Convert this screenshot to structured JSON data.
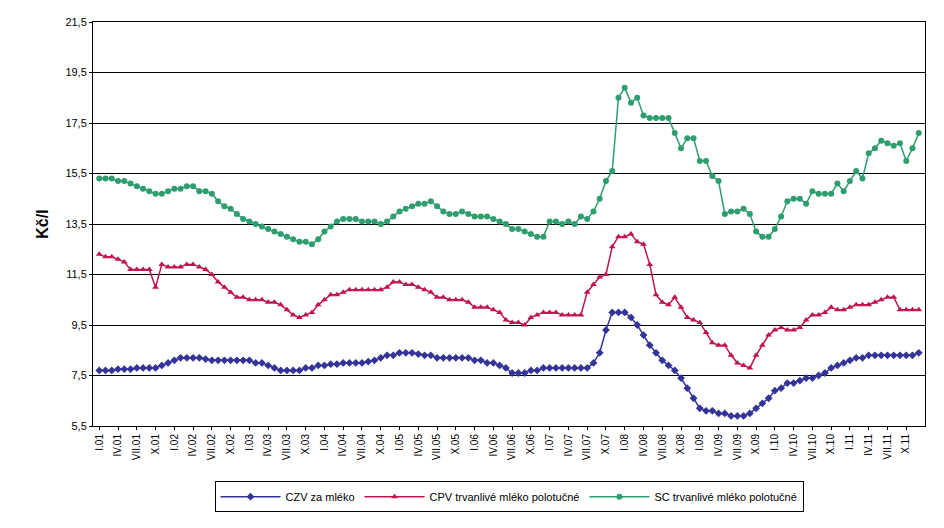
{
  "chart_data": {
    "type": "line",
    "y_label": "Kč/l",
    "grid": true,
    "legend": "bottom",
    "categories": [
      "I.01",
      null,
      null,
      "IV.01",
      null,
      null,
      "VII.01",
      null,
      null,
      "X.01",
      null,
      null,
      "I.02",
      null,
      null,
      "IV.02",
      null,
      null,
      "VII.02",
      null,
      null,
      "X.02",
      null,
      null,
      "I.03",
      null,
      null,
      "IV.03",
      null,
      null,
      "VII.03",
      null,
      null,
      "X.03",
      null,
      null,
      "I.04",
      null,
      null,
      "IV.04",
      null,
      null,
      "VII.04",
      null,
      null,
      "X.04",
      null,
      null,
      "I.05",
      null,
      null,
      "IV.05",
      null,
      null,
      "VII.05",
      null,
      null,
      "X.05",
      null,
      null,
      "I.06",
      null,
      null,
      "IV.06",
      null,
      null,
      "VII.06",
      null,
      null,
      "X.06",
      null,
      null,
      "I.07",
      null,
      null,
      "IV.07",
      null,
      null,
      "VII.07",
      null,
      null,
      "X.07",
      null,
      null,
      "I.08",
      null,
      null,
      "IV.08",
      null,
      null,
      "VII.08",
      null,
      null,
      "X.08",
      null,
      null,
      "I.09",
      null,
      null,
      "IV.09",
      null,
      null,
      "VII.09",
      null,
      null,
      "X.09",
      null,
      null,
      "I.10",
      null,
      null,
      "IV.10",
      null,
      null,
      "VII.10",
      null,
      null,
      "X.10",
      null,
      null,
      "I.11",
      null,
      null,
      "IV.11",
      null,
      null,
      "VII.11",
      null,
      null,
      "X.11",
      null,
      null
    ],
    "ylim": [
      5.5,
      21.5
    ],
    "yticks": [
      {
        "value": 5.5,
        "label": "5,5"
      },
      {
        "value": 7.5,
        "label": "7,5"
      },
      {
        "value": 9.5,
        "label": "9,5"
      },
      {
        "value": 11.5,
        "label": "11,5"
      },
      {
        "value": 13.5,
        "label": "13,5"
      },
      {
        "value": 15.5,
        "label": "15,5"
      },
      {
        "value": 17.5,
        "label": "17,5"
      },
      {
        "value": 19.5,
        "label": "19,5"
      },
      {
        "value": 21.5,
        "label": "21,5"
      }
    ],
    "series": [
      {
        "name": "CZV za mléko",
        "color": "#333399",
        "marker": "diamond",
        "line_style": "solid",
        "values": [
          7.7,
          7.7,
          7.7,
          7.75,
          7.75,
          7.75,
          7.8,
          7.8,
          7.8,
          7.8,
          7.9,
          8.0,
          8.1,
          8.2,
          8.2,
          8.2,
          8.2,
          8.15,
          8.1,
          8.1,
          8.1,
          8.1,
          8.1,
          8.1,
          8.1,
          8.0,
          8.0,
          7.9,
          7.8,
          7.7,
          7.7,
          7.7,
          7.7,
          7.8,
          7.8,
          7.9,
          7.9,
          7.95,
          7.95,
          8.0,
          8.0,
          8.0,
          8.0,
          8.05,
          8.1,
          8.2,
          8.3,
          8.3,
          8.4,
          8.4,
          8.4,
          8.35,
          8.3,
          8.3,
          8.2,
          8.2,
          8.2,
          8.2,
          8.2,
          8.2,
          8.1,
          8.1,
          8.0,
          8.0,
          7.9,
          7.8,
          7.6,
          7.6,
          7.6,
          7.7,
          7.7,
          7.8,
          7.8,
          7.8,
          7.8,
          7.8,
          7.8,
          7.8,
          7.8,
          8.0,
          8.4,
          9.3,
          10.0,
          10.0,
          10.0,
          9.8,
          9.5,
          9.1,
          8.7,
          8.4,
          8.1,
          7.9,
          7.7,
          7.4,
          7.0,
          6.6,
          6.2,
          6.1,
          6.1,
          6.0,
          6.0,
          5.9,
          5.9,
          5.9,
          6.0,
          6.2,
          6.4,
          6.6,
          6.9,
          7.0,
          7.2,
          7.2,
          7.3,
          7.4,
          7.4,
          7.5,
          7.6,
          7.8,
          7.9,
          8.0,
          8.1,
          8.2,
          8.2,
          8.3,
          8.3,
          8.3,
          8.3,
          8.3,
          8.3,
          8.3,
          8.3,
          8.4
        ]
      },
      {
        "name": "CPV trvanlivé mléko polotučné",
        "color": "#C0144A",
        "marker": "triangle-up",
        "line_style": "solid",
        "values": [
          12.3,
          12.2,
          12.2,
          12.1,
          12.0,
          11.7,
          11.7,
          11.7,
          11.7,
          11.0,
          11.9,
          11.8,
          11.8,
          11.8,
          11.9,
          11.9,
          11.8,
          11.7,
          11.5,
          11.2,
          11.0,
          10.8,
          10.6,
          10.6,
          10.5,
          10.5,
          10.5,
          10.4,
          10.4,
          10.3,
          10.1,
          9.9,
          9.8,
          9.9,
          10.0,
          10.3,
          10.5,
          10.7,
          10.7,
          10.8,
          10.9,
          10.9,
          10.9,
          10.9,
          10.9,
          10.9,
          11.0,
          11.2,
          11.2,
          11.1,
          11.1,
          11.0,
          10.9,
          10.8,
          10.6,
          10.6,
          10.5,
          10.5,
          10.5,
          10.4,
          10.2,
          10.2,
          10.2,
          10.1,
          10.0,
          9.7,
          9.6,
          9.6,
          9.5,
          9.8,
          9.9,
          10.0,
          10.0,
          10.0,
          9.9,
          9.9,
          9.9,
          9.9,
          10.8,
          11.1,
          11.4,
          11.5,
          12.6,
          13.0,
          13.0,
          13.1,
          12.8,
          12.7,
          11.9,
          10.7,
          10.4,
          10.3,
          10.6,
          10.2,
          9.8,
          9.7,
          9.6,
          9.2,
          8.8,
          8.7,
          8.7,
          8.3,
          8.0,
          7.9,
          7.8,
          8.3,
          8.7,
          9.1,
          9.3,
          9.4,
          9.3,
          9.3,
          9.4,
          9.7,
          9.9,
          9.9,
          10.0,
          10.2,
          10.1,
          10.1,
          10.2,
          10.3,
          10.3,
          10.3,
          10.4,
          10.5,
          10.6,
          10.6,
          10.1,
          10.1,
          10.1,
          10.1
        ]
      },
      {
        "name": "SC trvanlivé mléko polotučné",
        "color": "#2E9E6E",
        "marker": "circle",
        "line_style": "solid",
        "values": [
          15.3,
          15.3,
          15.3,
          15.2,
          15.2,
          15.1,
          15.0,
          14.9,
          14.8,
          14.7,
          14.7,
          14.8,
          14.9,
          14.9,
          15.0,
          15.0,
          14.8,
          14.8,
          14.7,
          14.4,
          14.2,
          14.1,
          13.9,
          13.7,
          13.6,
          13.5,
          13.4,
          13.3,
          13.2,
          13.1,
          13.0,
          12.9,
          12.8,
          12.8,
          12.7,
          12.9,
          13.2,
          13.4,
          13.6,
          13.7,
          13.7,
          13.7,
          13.6,
          13.6,
          13.6,
          13.5,
          13.6,
          13.8,
          14.0,
          14.1,
          14.2,
          14.3,
          14.3,
          14.4,
          14.2,
          14.0,
          13.9,
          13.9,
          14.0,
          13.9,
          13.8,
          13.8,
          13.8,
          13.7,
          13.6,
          13.5,
          13.3,
          13.3,
          13.2,
          13.1,
          13.0,
          13.0,
          13.6,
          13.6,
          13.5,
          13.6,
          13.5,
          13.8,
          13.7,
          14.0,
          14.5,
          15.2,
          15.6,
          18.5,
          18.9,
          18.3,
          18.5,
          17.8,
          17.7,
          17.7,
          17.7,
          17.7,
          17.1,
          16.5,
          16.9,
          16.9,
          16.0,
          16.0,
          15.4,
          15.2,
          13.9,
          14.0,
          14.0,
          14.1,
          13.9,
          13.2,
          13.0,
          13.0,
          13.3,
          13.8,
          14.4,
          14.5,
          14.5,
          14.3,
          14.8,
          14.7,
          14.7,
          14.7,
          15.1,
          14.8,
          15.2,
          15.6,
          15.3,
          16.3,
          16.5,
          16.8,
          16.7,
          16.6,
          16.7,
          16.0,
          16.5,
          17.1
        ]
      }
    ]
  }
}
